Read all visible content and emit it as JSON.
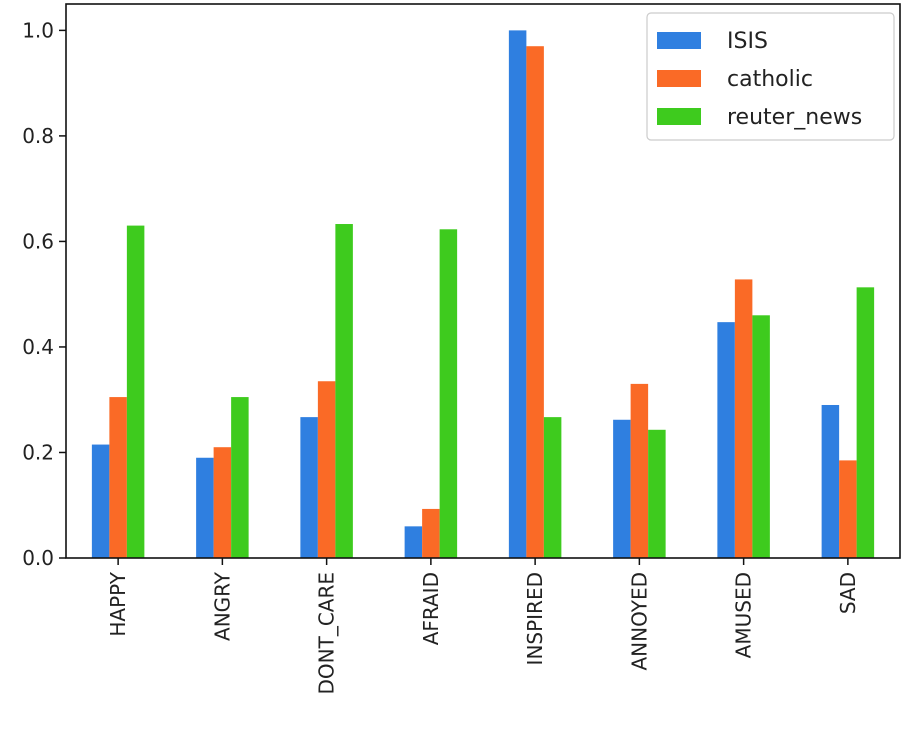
{
  "chart_data": {
    "type": "bar",
    "title": "",
    "xlabel": "",
    "ylabel": "",
    "ylim": [
      0,
      1.05
    ],
    "yticks": [
      "0.0",
      "0.2",
      "0.4",
      "0.6",
      "0.8",
      "1.0"
    ],
    "categories": [
      "HAPPY",
      "ANGRY",
      "DONT_CARE",
      "AFRAID",
      "INSPIRED",
      "ANNOYED",
      "AMUSED",
      "SAD"
    ],
    "series": [
      {
        "name": "ISIS",
        "color": "#2f7fe0",
        "values": [
          0.215,
          0.19,
          0.267,
          0.06,
          1.0,
          0.262,
          0.447,
          0.29
        ]
      },
      {
        "name": "catholic",
        "color": "#fa6a26",
        "values": [
          0.305,
          0.21,
          0.335,
          0.093,
          0.97,
          0.33,
          0.528,
          0.185
        ]
      },
      {
        "name": "reuter_news",
        "color": "#3ecb1e",
        "values": [
          0.63,
          0.305,
          0.633,
          0.623,
          0.267,
          0.243,
          0.46,
          0.513
        ]
      }
    ],
    "legend": "top-right",
    "grid": false
  }
}
